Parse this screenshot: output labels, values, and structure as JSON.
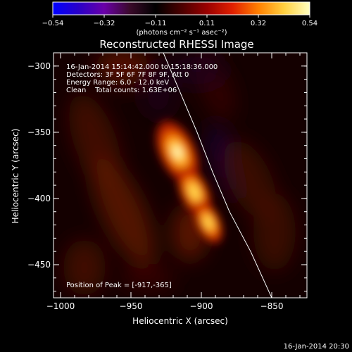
{
  "colorbar": {
    "min": -0.54,
    "max": 0.54,
    "ticks": [
      "-0.54",
      "-0.32",
      "-0.11",
      "0.11",
      "0.32",
      "0.54"
    ],
    "unit_label": "(photons cm⁻² s⁻¹ asec⁻²)",
    "colormap": [
      "#0000ff",
      "#2a00c8",
      "#6a00a8",
      "#3a0a2a",
      "#000000",
      "#4a0000",
      "#9a0000",
      "#e02000",
      "#ff8000",
      "#ffd040",
      "#ffffc0"
    ]
  },
  "chart_data": {
    "type": "heatmap",
    "title": "Reconstructed RHESSI Image",
    "xlabel": "Heliocentric X (arcsec)",
    "ylabel": "Heliocentric Y (arcsec)",
    "xlim": [
      -1005,
      -825
    ],
    "ylim": [
      -475,
      -290
    ],
    "x_ticks": [
      -1000,
      -950,
      -900,
      -850
    ],
    "y_ticks": [
      -300,
      -350,
      -400,
      -450
    ],
    "x_tick_labels": [
      "−1000",
      "−950",
      "−900",
      "−850"
    ],
    "y_tick_labels": [
      "−300",
      "−350",
      "−400",
      "−450"
    ],
    "info_lines": [
      "16-Jan-2014 15:14:42.000 to 15:18:36.000",
      "Detectors: 3F 5F 6F 7F 8F 9F, Att 0",
      "Energy Range: 6.0 - 12.0 keV",
      "Clean    Total counts: 1.63E+06"
    ],
    "peak_text": "Position of Peak = [-917,-365]",
    "peak": [
      -917,
      -365
    ],
    "sources": [
      {
        "x": -917,
        "y": -365,
        "value": 0.54
      },
      {
        "x": -905,
        "y": -395,
        "value": 0.4
      },
      {
        "x": -895,
        "y": -418,
        "value": 0.32
      }
    ],
    "limb": [
      [
        -927,
        -290
      ],
      [
        -915,
        -320
      ],
      [
        -903,
        -350
      ],
      [
        -892,
        -380
      ],
      [
        -880,
        -410
      ],
      [
        -865,
        -440
      ],
      [
        -850,
        -475
      ]
    ]
  },
  "footer": {
    "timestamp": "16-Jan-2014 20:30"
  }
}
